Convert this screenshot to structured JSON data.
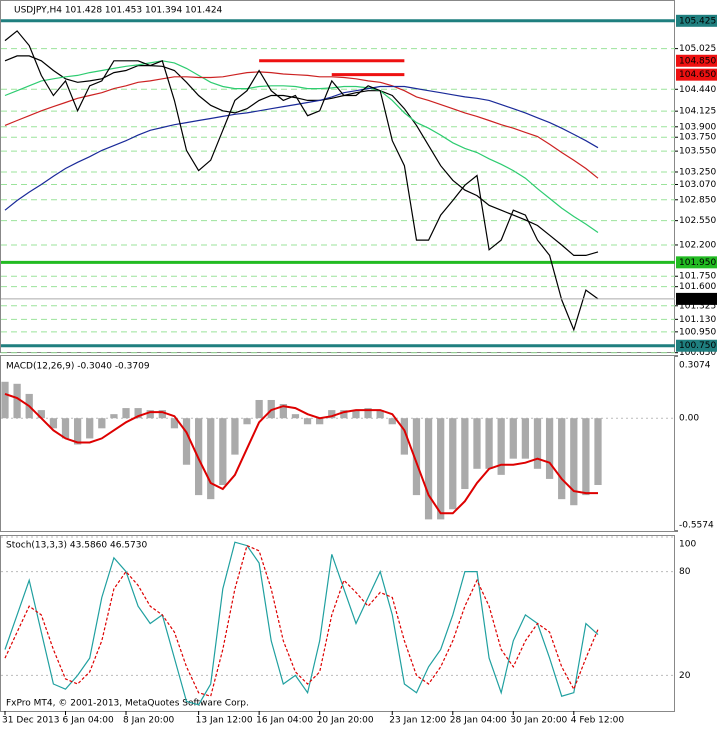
{
  "chart_data": [
    {
      "type": "price",
      "title": "USDJPY,H4  101.428 101.453 101.394 101.424",
      "categories": [
        "31 Dec 2013",
        null,
        null,
        null,
        null,
        "6 Jan 04:00",
        null,
        null,
        null,
        null,
        "8 Jan 20:00",
        null,
        null,
        null,
        null,
        null,
        "13 Jan 12:00",
        null,
        null,
        null,
        null,
        "16 Jan 04:00",
        null,
        null,
        null,
        null,
        "20 Jan 20:00",
        null,
        null,
        null,
        null,
        null,
        "23 Jan 12:00",
        null,
        null,
        null,
        null,
        "28 Jan 04:00",
        null,
        null,
        null,
        null,
        "30 Jan 20:00",
        null,
        null,
        null,
        null,
        "4 Feb 12:00",
        null,
        null
      ],
      "close": [
        105.14,
        105.28,
        105.07,
        104.64,
        104.35,
        104.56,
        104.13,
        104.49,
        104.56,
        104.85,
        104.85,
        104.85,
        104.78,
        104.85,
        104.28,
        103.56,
        103.27,
        103.42,
        103.85,
        104.28,
        104.42,
        104.71,
        104.42,
        104.28,
        104.35,
        104.06,
        104.13,
        104.56,
        104.35,
        104.35,
        104.49,
        104.42,
        103.7,
        103.34,
        102.27,
        102.27,
        102.63,
        102.84,
        103.06,
        103.2,
        102.13,
        102.27,
        102.7,
        102.63,
        102.27,
        102.05,
        101.41,
        100.98,
        101.55,
        101.424
      ],
      "color": "#000000",
      "moving_averages": [
        {
          "color": "#000000",
          "values": [
            104.85,
            104.92,
            104.92,
            104.85,
            104.71,
            104.59,
            104.54,
            104.56,
            104.59,
            104.68,
            104.71,
            104.78,
            104.78,
            104.77,
            104.71,
            104.54,
            104.35,
            104.21,
            104.13,
            104.1,
            104.16,
            104.28,
            104.35,
            104.35,
            104.32,
            104.28,
            104.28,
            104.31,
            104.35,
            104.39,
            104.42,
            104.42,
            104.35,
            104.16,
            103.92,
            103.63,
            103.34,
            103.13,
            102.99,
            102.91,
            102.77,
            102.7,
            102.63,
            102.56,
            102.48,
            102.34,
            102.2,
            102.05,
            102.05,
            102.1
          ]
        },
        {
          "color": "#2ecc71",
          "values": [
            104.35,
            104.42,
            104.49,
            104.56,
            104.59,
            104.62,
            104.64,
            104.68,
            104.71,
            104.74,
            104.77,
            104.79,
            104.82,
            104.85,
            104.82,
            104.74,
            104.64,
            104.54,
            104.48,
            104.45,
            104.45,
            104.48,
            104.49,
            104.49,
            104.48,
            104.45,
            104.45,
            104.46,
            104.48,
            104.48,
            104.46,
            104.42,
            104.28,
            104.1,
            103.96,
            103.88,
            103.78,
            103.67,
            103.59,
            103.53,
            103.44,
            103.36,
            103.27,
            103.16,
            103.01,
            102.87,
            102.73,
            102.61,
            102.5,
            102.38
          ]
        },
        {
          "color": "#cc2222",
          "values": [
            103.92,
            103.99,
            104.06,
            104.13,
            104.19,
            104.25,
            104.31,
            104.35,
            104.39,
            104.45,
            104.49,
            104.54,
            104.56,
            104.59,
            104.62,
            104.62,
            104.61,
            104.61,
            104.62,
            104.65,
            104.68,
            104.69,
            104.68,
            104.66,
            104.65,
            104.64,
            104.62,
            104.62,
            104.61,
            104.59,
            104.56,
            104.54,
            104.49,
            104.42,
            104.33,
            104.28,
            104.22,
            104.16,
            104.1,
            104.05,
            103.99,
            103.93,
            103.88,
            103.82,
            103.76,
            103.65,
            103.53,
            103.42,
            103.3,
            103.16
          ]
        },
        {
          "color": "#1a2a99",
          "values": [
            102.7,
            102.84,
            102.96,
            103.07,
            103.19,
            103.3,
            103.39,
            103.47,
            103.56,
            103.63,
            103.7,
            103.78,
            103.85,
            103.89,
            103.93,
            103.96,
            103.99,
            104.02,
            104.05,
            104.08,
            104.1,
            104.13,
            104.16,
            104.19,
            104.22,
            104.25,
            104.28,
            104.33,
            104.39,
            104.42,
            104.45,
            104.48,
            104.48,
            104.48,
            104.45,
            104.42,
            104.39,
            104.36,
            104.33,
            104.31,
            104.28,
            104.22,
            104.16,
            104.1,
            104.03,
            103.96,
            103.88,
            103.79,
            103.7,
            103.6
          ]
        }
      ],
      "ylim": [
        100.66,
        105.71
      ],
      "yticks": [
        {
          "value": 105.025,
          "label": "105.025"
        },
        {
          "value": 104.44,
          "label": "104.440"
        },
        {
          "value": 104.125,
          "label": "104.125"
        },
        {
          "value": 103.9,
          "label": "103.900"
        },
        {
          "value": 103.75,
          "label": "103.750"
        },
        {
          "value": 103.55,
          "label": "103.550"
        },
        {
          "value": 103.25,
          "label": "103.250"
        },
        {
          "value": 103.07,
          "label": "103.070"
        },
        {
          "value": 102.85,
          "label": "102.850"
        },
        {
          "value": 102.55,
          "label": "102.550"
        },
        {
          "value": 102.2,
          "label": "102.200"
        },
        {
          "value": 101.75,
          "label": "101.750"
        },
        {
          "value": 101.6,
          "label": "101.600"
        },
        {
          "value": 101.325,
          "label": "101.325"
        },
        {
          "value": 101.13,
          "label": "101.130"
        },
        {
          "value": 100.95,
          "label": "100.950"
        },
        {
          "value": 100.65,
          "label": "100.650"
        }
      ],
      "hlines": [
        {
          "value": 105.425,
          "label": "105.425",
          "color": "#1f7f7f"
        },
        {
          "value": 101.95,
          "label": "101.950",
          "color": "#22bb22"
        },
        {
          "value": 100.75,
          "label": "100.750",
          "color": "#1f7f7f"
        }
      ],
      "segments": [
        {
          "value": 104.85,
          "label": "104.850",
          "color": "#ee1111",
          "from": 21,
          "to": 33
        },
        {
          "value": 104.65,
          "label": "104.650",
          "color": "#ee1111",
          "from": 27,
          "to": 33
        }
      ],
      "last": {
        "value": 101.424,
        "label": "101.424"
      }
    },
    {
      "type": "macd",
      "title": "MACD(12,26,9) -0.3040 -0.3709",
      "histogram": {
        "color": "#aaaaaa",
        "values": [
          0.18,
          0.17,
          0.12,
          0.04,
          -0.05,
          -0.1,
          -0.13,
          -0.1,
          -0.05,
          0.02,
          0.05,
          0.05,
          0.04,
          0.04,
          -0.05,
          -0.23,
          -0.38,
          -0.4,
          -0.33,
          -0.18,
          -0.03,
          0.09,
          0.09,
          0.07,
          0.02,
          -0.03,
          -0.03,
          0.04,
          0.04,
          0.04,
          0.05,
          0.04,
          -0.03,
          -0.18,
          -0.38,
          -0.5,
          -0.5,
          -0.45,
          -0.35,
          -0.25,
          -0.25,
          -0.28,
          -0.2,
          -0.2,
          -0.25,
          -0.3,
          -0.4,
          -0.43,
          -0.38,
          -0.33
        ]
      },
      "signal": {
        "color": "#dd0000",
        "values": [
          0.12,
          0.1,
          0.06,
          0.0,
          -0.06,
          -0.1,
          -0.12,
          -0.12,
          -0.1,
          -0.06,
          -0.02,
          0.01,
          0.03,
          0.03,
          0.01,
          -0.07,
          -0.2,
          -0.32,
          -0.35,
          -0.28,
          -0.15,
          -0.02,
          0.04,
          0.06,
          0.05,
          0.02,
          0.0,
          0.01,
          0.03,
          0.04,
          0.04,
          0.04,
          0.02,
          -0.06,
          -0.22,
          -0.38,
          -0.47,
          -0.47,
          -0.41,
          -0.32,
          -0.25,
          -0.23,
          -0.23,
          -0.22,
          -0.2,
          -0.22,
          -0.3,
          -0.36,
          -0.37,
          -0.37
        ]
      },
      "ylim": [
        -0.5574,
        0.3074
      ],
      "yticks": [
        0.3074,
        {
          "value": 0,
          "label": "0.00"
        },
        -0.5574
      ]
    },
    {
      "type": "stoch",
      "title": "Stoch(13,3,3) 43.5860 46.5730",
      "note": "FxPro MT4, © 2001-2013, MetaQuotes Software Corp.",
      "series": [
        {
          "color": "#20a0a0",
          "dashed": false,
          "values": [
            35,
            55,
            75,
            45,
            15,
            12,
            20,
            30,
            65,
            88,
            80,
            60,
            50,
            55,
            30,
            5,
            3,
            15,
            70,
            97,
            95,
            85,
            40,
            15,
            20,
            10,
            40,
            90,
            70,
            50,
            65,
            80,
            55,
            15,
            10,
            25,
            35,
            55,
            80,
            80,
            30,
            10,
            40,
            55,
            50,
            30,
            8,
            10,
            50,
            43.586
          ]
        },
        {
          "color": "#dd0000",
          "dashed": true,
          "values": [
            30,
            45,
            60,
            55,
            35,
            18,
            15,
            22,
            40,
            70,
            80,
            72,
            60,
            55,
            45,
            25,
            10,
            8,
            35,
            70,
            95,
            92,
            70,
            40,
            22,
            15,
            22,
            55,
            75,
            68,
            60,
            68,
            65,
            40,
            20,
            15,
            25,
            40,
            60,
            75,
            60,
            35,
            25,
            40,
            50,
            45,
            25,
            12,
            30,
            46.573
          ]
        }
      ],
      "ylim": [
        0,
        100
      ],
      "yticks": [
        20,
        80,
        100
      ]
    }
  ]
}
